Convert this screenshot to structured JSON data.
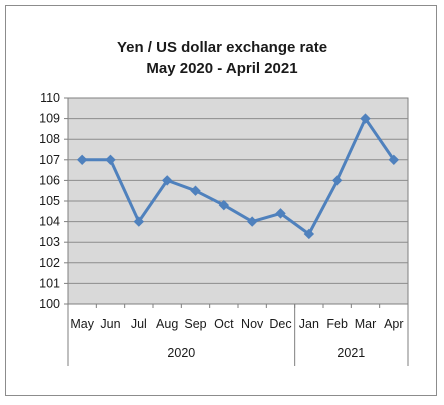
{
  "chart_data": {
    "type": "line",
    "title": "Yen / US dollar exchange rate",
    "subtitle": "May 2020 - April 2021",
    "categories": [
      "May",
      "Jun",
      "Jul",
      "Aug",
      "Sep",
      "Oct",
      "Nov",
      "Dec",
      "Jan",
      "Feb",
      "Mar",
      "Apr"
    ],
    "year_groups": [
      {
        "label": "2020",
        "count": 8
      },
      {
        "label": "2021",
        "count": 4
      }
    ],
    "series": [
      {
        "values": [
          107.0,
          107.0,
          104.0,
          106.0,
          105.5,
          104.8,
          104.0,
          104.4,
          103.4,
          106.0,
          109.0,
          107.0
        ]
      }
    ],
    "ylim": [
      100,
      110
    ],
    "yticks": [
      "100",
      "101",
      "102",
      "103",
      "104",
      "105",
      "106",
      "107",
      "108",
      "109",
      "110"
    ],
    "grid": true,
    "plot_background": "#d9d9d9",
    "line_color": "#4f81bd",
    "marker": "diamond"
  }
}
